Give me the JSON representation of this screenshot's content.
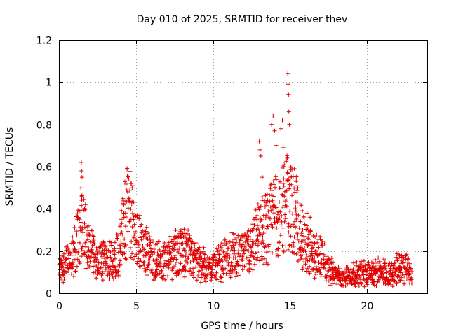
{
  "chart_data": {
    "type": "scatter",
    "title": "Day 010 of 2025, SRMTID for receiver thev",
    "xlabel": "GPS time / hours",
    "ylabel": "SRMTID / TECUs",
    "xlim": [
      0,
      23.9
    ],
    "ylim": [
      0,
      1.2
    ],
    "xticks": [
      0,
      5,
      10,
      15,
      20
    ],
    "xtick_labels": [
      "0",
      "5",
      "10",
      "15",
      "20"
    ],
    "yticks": [
      0,
      0.2,
      0.4,
      0.6,
      0.8,
      1.0,
      1.2
    ],
    "ytick_labels": [
      "0",
      "0.2",
      "0.4",
      "0.6",
      "0.8",
      "1",
      "1.2"
    ],
    "grid": true,
    "marker": "plus",
    "series": [
      {
        "name": "SRMTID",
        "color": "#e00000",
        "profile": {
          "hours": [
            0,
            0.5,
            1.0,
            1.4,
            1.6,
            2.0,
            2.5,
            3.0,
            3.5,
            4.0,
            4.3,
            4.6,
            5.0,
            5.5,
            6.0,
            6.5,
            7.0,
            7.5,
            8.0,
            8.5,
            9.0,
            9.5,
            10.0,
            10.5,
            11.0,
            11.5,
            12.0,
            12.5,
            13.0,
            13.5,
            14.0,
            14.5,
            14.9,
            15.3,
            15.6,
            16.0,
            16.5,
            17.0,
            17.5,
            18.0,
            18.5,
            19.0,
            19.5,
            20.0,
            20.5,
            21.0,
            21.5,
            22.0,
            22.5,
            22.9
          ],
          "values": [
            0.11,
            0.15,
            0.2,
            0.32,
            0.3,
            0.22,
            0.16,
            0.15,
            0.16,
            0.24,
            0.38,
            0.4,
            0.27,
            0.22,
            0.17,
            0.16,
            0.17,
            0.19,
            0.2,
            0.2,
            0.15,
            0.13,
            0.13,
            0.15,
            0.18,
            0.19,
            0.19,
            0.21,
            0.3,
            0.32,
            0.38,
            0.4,
            0.45,
            0.4,
            0.32,
            0.22,
            0.18,
            0.17,
            0.12,
            0.08,
            0.08,
            0.09,
            0.1,
            0.1,
            0.1,
            0.1,
            0.09,
            0.12,
            0.13,
            0.08
          ]
        },
        "peaks": [
          {
            "x": 1.45,
            "y": 0.62
          },
          {
            "x": 1.47,
            "y": 0.58
          },
          {
            "x": 1.5,
            "y": 0.55
          },
          {
            "x": 1.42,
            "y": 0.5
          },
          {
            "x": 1.48,
            "y": 0.46
          },
          {
            "x": 4.4,
            "y": 0.49
          },
          {
            "x": 4.55,
            "y": 0.45
          },
          {
            "x": 4.7,
            "y": 0.52
          },
          {
            "x": 4.75,
            "y": 0.5
          },
          {
            "x": 4.8,
            "y": 0.51
          },
          {
            "x": 13.0,
            "y": 0.72
          },
          {
            "x": 13.05,
            "y": 0.68
          },
          {
            "x": 13.1,
            "y": 0.65
          },
          {
            "x": 13.2,
            "y": 0.55
          },
          {
            "x": 13.8,
            "y": 0.8
          },
          {
            "x": 13.9,
            "y": 0.84
          },
          {
            "x": 14.0,
            "y": 0.77
          },
          {
            "x": 14.1,
            "y": 0.7
          },
          {
            "x": 14.4,
            "y": 0.78
          },
          {
            "x": 14.5,
            "y": 0.82
          },
          {
            "x": 14.55,
            "y": 0.69
          },
          {
            "x": 14.6,
            "y": 0.6
          },
          {
            "x": 14.85,
            "y": 1.04
          },
          {
            "x": 14.87,
            "y": 0.99
          },
          {
            "x": 14.9,
            "y": 0.94
          },
          {
            "x": 14.92,
            "y": 0.86
          },
          {
            "x": 14.95,
            "y": 0.8
          },
          {
            "x": 14.8,
            "y": 0.64
          },
          {
            "x": 15.0,
            "y": 0.55
          },
          {
            "x": 15.4,
            "y": 0.53
          },
          {
            "x": 15.5,
            "y": 0.5
          },
          {
            "x": 16.1,
            "y": 0.38
          },
          {
            "x": 16.3,
            "y": 0.36
          }
        ]
      }
    ]
  }
}
